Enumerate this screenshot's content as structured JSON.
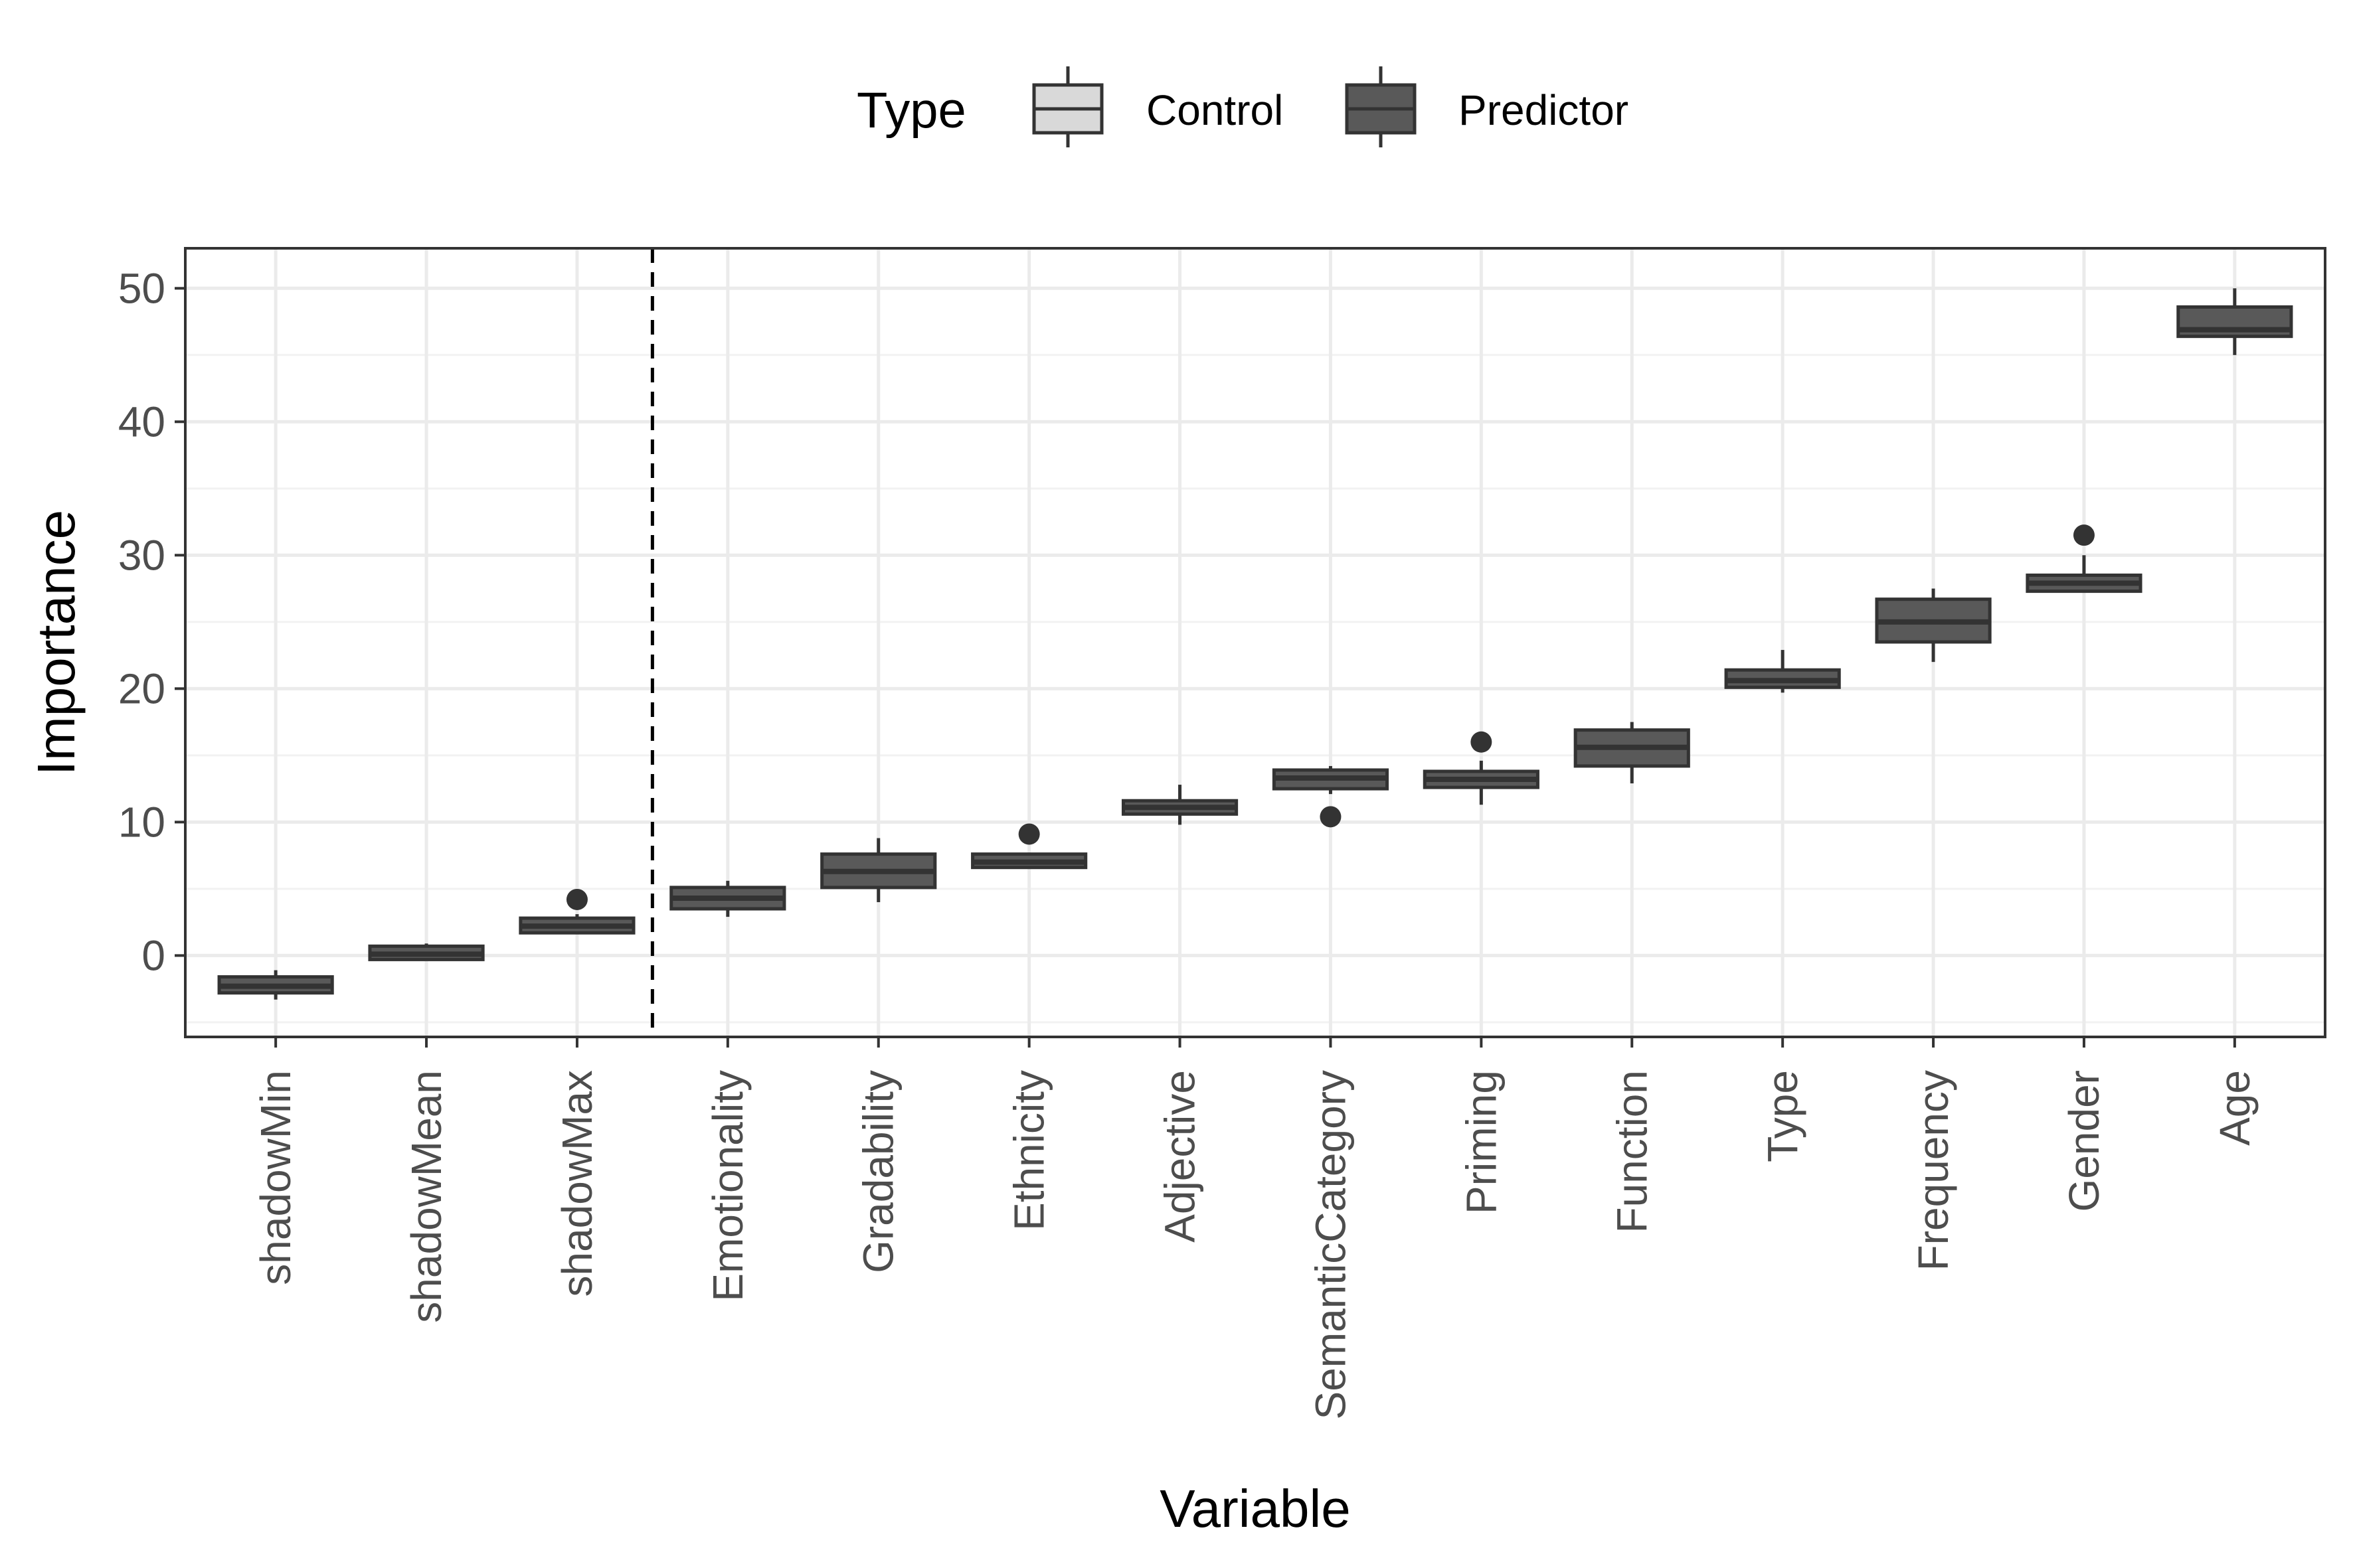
{
  "chart_data": {
    "type": "boxplot",
    "xlabel": "Variable",
    "ylabel": "Importance",
    "ylim": [
      -6.1,
      53
    ],
    "yticks": [
      0,
      10,
      20,
      30,
      40,
      50
    ],
    "grid": true,
    "legend": {
      "title": "Type",
      "position": "top",
      "entries": [
        {
          "label": "Control",
          "fill": "#d9d9d9"
        },
        {
          "label": "Predictor",
          "fill": "#595959"
        }
      ]
    },
    "cutoff_after_category": "shadowMax",
    "colors": {
      "control_fill": "#d9d9d9",
      "predictor_fill": "#595959",
      "outline": "#333333",
      "grid_major": "#ebebeb",
      "grid_minor": "#f2f2f2"
    },
    "categories": [
      "shadowMin",
      "shadowMean",
      "shadowMax",
      "Emotionality",
      "Gradability",
      "Ethnicity",
      "Adjective",
      "SemanticCategory",
      "Priming",
      "Function",
      "Type",
      "Frequency",
      "Gender",
      "Age"
    ],
    "series": [
      {
        "category": "shadowMin",
        "type": "Predictor",
        "min": -3.3,
        "q1": -2.8,
        "median": -2.3,
        "q3": -1.6,
        "max": -1.1,
        "outliers": []
      },
      {
        "category": "shadowMean",
        "type": "Predictor",
        "min": -0.4,
        "q1": -0.3,
        "median": 0.1,
        "q3": 0.7,
        "max": 0.9,
        "outliers": []
      },
      {
        "category": "shadowMax",
        "type": "Predictor",
        "min": 1.6,
        "q1": 1.7,
        "median": 2.2,
        "q3": 2.8,
        "max": 3.1,
        "outliers": [
          4.2
        ]
      },
      {
        "category": "Emotionality",
        "type": "Predictor",
        "min": 2.9,
        "q1": 3.5,
        "median": 4.3,
        "q3": 5.1,
        "max": 5.6,
        "outliers": []
      },
      {
        "category": "Gradability",
        "type": "Predictor",
        "min": 4.0,
        "q1": 5.1,
        "median": 6.3,
        "q3": 7.6,
        "max": 8.8,
        "outliers": []
      },
      {
        "category": "Ethnicity",
        "type": "Predictor",
        "min": 6.5,
        "q1": 6.6,
        "median": 7.0,
        "q3": 7.6,
        "max": 7.7,
        "outliers": [
          9.1
        ]
      },
      {
        "category": "Adjective",
        "type": "Predictor",
        "min": 9.8,
        "q1": 10.6,
        "median": 11.1,
        "q3": 11.6,
        "max": 12.8,
        "outliers": []
      },
      {
        "category": "SemanticCategory",
        "type": "Predictor",
        "min": 12.1,
        "q1": 12.5,
        "median": 13.3,
        "q3": 13.9,
        "max": 14.2,
        "outliers": [
          10.4
        ]
      },
      {
        "category": "Priming",
        "type": "Predictor",
        "min": 11.3,
        "q1": 12.6,
        "median": 13.2,
        "q3": 13.8,
        "max": 14.6,
        "outliers": [
          16.0
        ]
      },
      {
        "category": "Function",
        "type": "Predictor",
        "min": 12.9,
        "q1": 14.2,
        "median": 15.6,
        "q3": 16.9,
        "max": 17.5,
        "outliers": []
      },
      {
        "category": "Type",
        "type": "Predictor",
        "min": 19.7,
        "q1": 20.1,
        "median": 20.6,
        "q3": 21.4,
        "max": 22.9,
        "outliers": []
      },
      {
        "category": "Frequency",
        "type": "Predictor",
        "min": 22.0,
        "q1": 23.5,
        "median": 25.0,
        "q3": 26.7,
        "max": 27.5,
        "outliers": []
      },
      {
        "category": "Gender",
        "type": "Predictor",
        "min": 27.2,
        "q1": 27.3,
        "median": 27.9,
        "q3": 28.5,
        "max": 30.0,
        "outliers": [
          31.5
        ]
      },
      {
        "category": "Age",
        "type": "Predictor",
        "min": 45.0,
        "q1": 46.4,
        "median": 46.9,
        "q3": 48.6,
        "max": 50.0,
        "outliers": []
      }
    ]
  }
}
